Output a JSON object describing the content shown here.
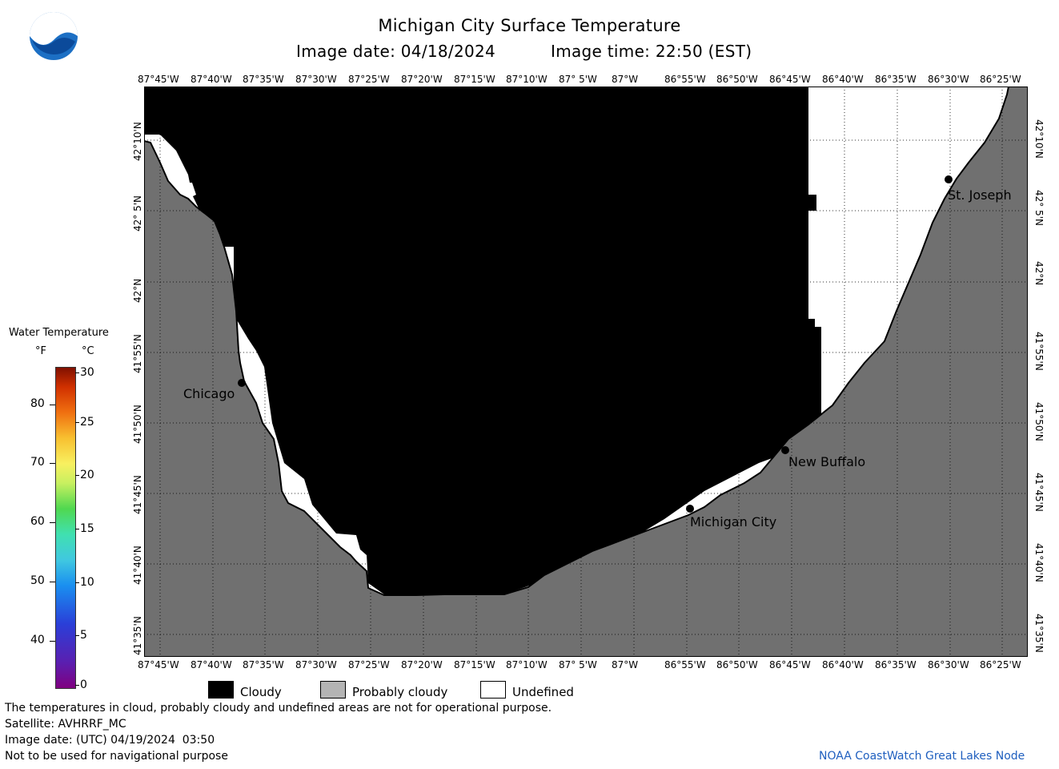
{
  "header": {
    "title": "Michigan City Surface Temperature",
    "image_date": "Image date: 04/18/2024",
    "image_time": "Image time: 22:50 (EST)",
    "logo_text": "NOAA"
  },
  "axes": {
    "lon_labels": [
      "87°45'W",
      "87°40'W",
      "87°35'W",
      "87°30'W",
      "87°25'W",
      "87°20'W",
      "87°15'W",
      "87°10'W",
      "87° 5'W",
      "87°W",
      "86°55'W",
      "86°50'W",
      "86°45'W",
      "86°40'W",
      "86°35'W",
      "86°30'W",
      "86°25'W"
    ],
    "lat_labels": [
      "42°10'N",
      "42° 5'N",
      "42°N",
      "41°55'N",
      "41°50'N",
      "41°45'N",
      "41°40'N",
      "41°35'N"
    ]
  },
  "places": [
    {
      "name": "Chicago"
    },
    {
      "name": "St. Joseph"
    },
    {
      "name": "New Buffalo"
    },
    {
      "name": "Michigan City"
    }
  ],
  "colorbar": {
    "title": "Water Temperature",
    "unit_f": "°F",
    "unit_c": "°C",
    "f_ticks": [
      "80",
      "70",
      "60",
      "50",
      "40"
    ],
    "c_ticks": [
      "30",
      "25",
      "20",
      "15",
      "10",
      "5",
      "0"
    ]
  },
  "legend": {
    "cloudy": "Cloudy",
    "probably_cloudy": "Probably cloudy",
    "undefined": "Undefined"
  },
  "footer": {
    "note": "The temperatures in cloud, probably cloudy and undefined areas are not for operational purpose.",
    "satellite": "Satellite: AVHRRF_MC",
    "image_date_utc": "Image date: (UTC) 04/19/2024  03:50",
    "navigation": "Not to be used for navigational purpose",
    "credit": "NOAA CoastWatch Great Lakes Node"
  },
  "colors": {
    "land": "#707070",
    "cloud": "#000000",
    "undefined": "#ffffff",
    "probably_cloudy": "#b4b4b4",
    "credit": "#1f5fbf"
  }
}
